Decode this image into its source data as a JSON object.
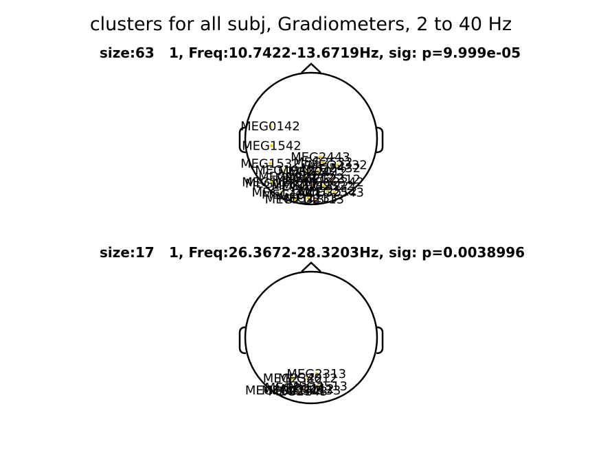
{
  "figure": {
    "title": "clusters for all subj, Gradiometers, 2 to 40 Hz"
  },
  "chart_data": [
    {
      "type": "scatter",
      "panel": 1,
      "title": "size:63    1, Freq:10.7422-13.6719Hz, sig: p=9.999e-05",
      "size": "size:63",
      "cluster_info": "1, Freq:10.7422-13.6719Hz, sig: p=9.999e-05",
      "marker_color": "#f0c800",
      "visible_labels": [
        "MEG0142",
        "MEG1542",
        "MEG1532",
        "MEG2443",
        "MEG2532"
      ],
      "points": [
        {
          "label": "MEG0142",
          "x": -0.62,
          "y": 0.19
        },
        {
          "label": "MEG1542",
          "x": -0.6,
          "y": -0.11
        },
        {
          "label": "MEG1532",
          "x": -0.62,
          "y": -0.38
        },
        {
          "label": "MEG2443",
          "x": 0.14,
          "y": -0.28
        },
        {
          "label": "MEG2532",
          "x": 0.18,
          "y": -0.36
        },
        {
          "label": "MEG2332",
          "x": 0.4,
          "y": -0.4
        },
        {
          "label": "MEG2432",
          "x": 0.3,
          "y": -0.45
        },
        {
          "label": "MEG1942",
          "x": -0.4,
          "y": -0.48
        },
        {
          "label": "MEG2042",
          "x": -0.05,
          "y": -0.5
        },
        {
          "label": "MEG2012",
          "x": 0.1,
          "y": -0.5
        },
        {
          "label": "MEG1922",
          "x": -0.35,
          "y": -0.58
        },
        {
          "label": "MEG2112",
          "x": -0.1,
          "y": -0.6
        },
        {
          "label": "MEG2122",
          "x": 0.05,
          "y": -0.6
        },
        {
          "label": "MEG2312",
          "x": 0.3,
          "y": -0.62
        },
        {
          "label": "MEG2342",
          "x": 0.35,
          "y": -0.66
        },
        {
          "label": "MEG1732",
          "x": -0.55,
          "y": -0.68
        },
        {
          "label": "MEG1642",
          "x": -0.6,
          "y": -0.66
        },
        {
          "label": "MEG2142",
          "x": -0.15,
          "y": -0.72
        },
        {
          "label": "MEG2132",
          "x": 0.0,
          "y": -0.72
        },
        {
          "label": "MEG2522",
          "x": 0.2,
          "y": -0.72
        },
        {
          "label": "MEG2512",
          "x": 0.25,
          "y": -0.8
        },
        {
          "label": "MEG1742",
          "x": -0.45,
          "y": -0.82
        },
        {
          "label": "MEG2543",
          "x": 0.35,
          "y": -0.82
        },
        {
          "label": "MEG1943",
          "x": -0.3,
          "y": -0.85
        },
        {
          "label": "MEG2133",
          "x": -0.05,
          "y": -0.9
        },
        {
          "label": "MEG2143",
          "x": -0.25,
          "y": -0.92
        },
        {
          "label": "MEG2113",
          "x": 0.05,
          "y": -0.92
        }
      ]
    },
    {
      "type": "scatter",
      "panel": 2,
      "title": "size:17    1, Freq:26.3672-28.3203Hz, sig: p=0.0038996",
      "size": "size:17",
      "cluster_info": "1, Freq:26.3672-28.3203Hz, sig: p=0.0038996",
      "marker_color": "#f0c800",
      "visible_labels": [
        "MEG2313",
        "MEG2513"
      ],
      "points": [
        {
          "label": "MEG2313",
          "x": 0.08,
          "y": -0.55
        },
        {
          "label": "MEG2342",
          "x": -0.28,
          "y": -0.62
        },
        {
          "label": "MEG2012",
          "x": -0.05,
          "y": -0.62
        },
        {
          "label": "MEG2513",
          "x": 0.1,
          "y": -0.74
        },
        {
          "label": "MEG2122",
          "x": -0.25,
          "y": -0.76
        },
        {
          "label": "MEG1942",
          "x": -0.55,
          "y": -0.8
        },
        {
          "label": "MEG2142",
          "x": -0.3,
          "y": -0.8
        },
        {
          "label": "MEG2112",
          "x": -0.1,
          "y": -0.78
        },
        {
          "label": "MEG2133",
          "x": 0.0,
          "y": -0.8
        },
        {
          "label": "MEG2143",
          "x": -0.2,
          "y": -0.82
        }
      ]
    }
  ]
}
